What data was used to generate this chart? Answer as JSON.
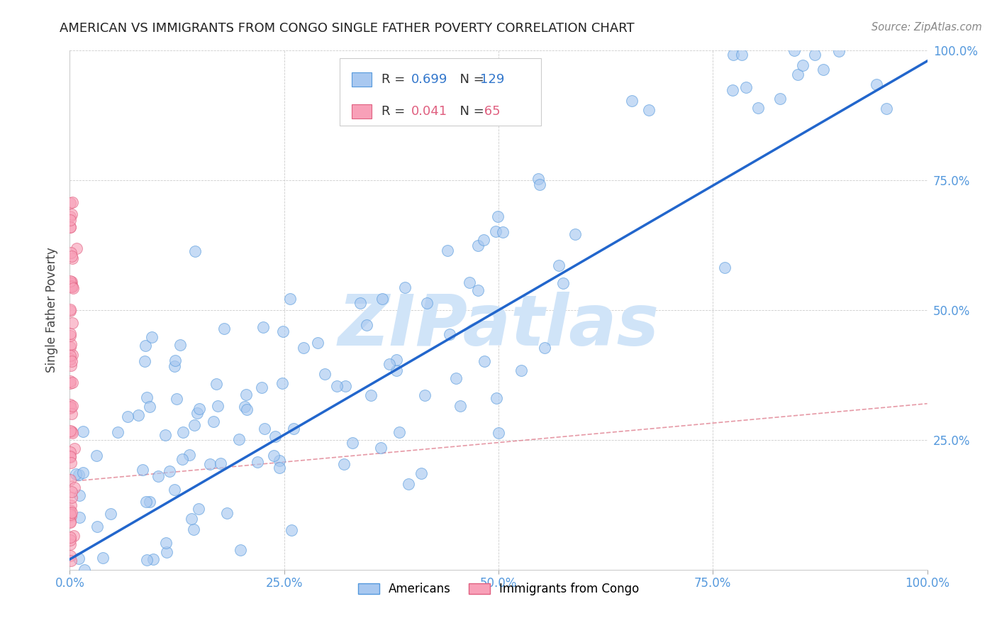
{
  "title": "AMERICAN VS IMMIGRANTS FROM CONGO SINGLE FATHER POVERTY CORRELATION CHART",
  "source": "Source: ZipAtlas.com",
  "ylabel": "Single Father Poverty",
  "r_american": 0.699,
  "n_american": 129,
  "r_congo": 0.041,
  "n_congo": 65,
  "american_color": "#a8c8f0",
  "american_edge": "#5599dd",
  "congo_color": "#f8a0b8",
  "congo_edge": "#e06080",
  "trend_american_color": "#2266cc",
  "trend_congo_color": "#e08090",
  "watermark": "ZIPatlas",
  "watermark_color": "#d0e4f8",
  "legend_label_american": "Americans",
  "legend_label_congo": "Immigrants from Congo",
  "xlim": [
    0,
    1
  ],
  "ylim": [
    0,
    1
  ],
  "xticks": [
    0,
    0.25,
    0.5,
    0.75,
    1.0
  ],
  "yticks": [
    0.25,
    0.5,
    0.75,
    1.0
  ],
  "xticklabels": [
    "0.0%",
    "25.0%",
    "50.0%",
    "75.0%",
    "100.0%"
  ],
  "yticklabels": [
    "25.0%",
    "50.0%",
    "75.0%",
    "100.0%"
  ],
  "tick_color": "#5599dd",
  "legend_text_color_black": "#333333",
  "legend_val_color": "#3377cc",
  "legend_val_color_congo": "#e06080"
}
